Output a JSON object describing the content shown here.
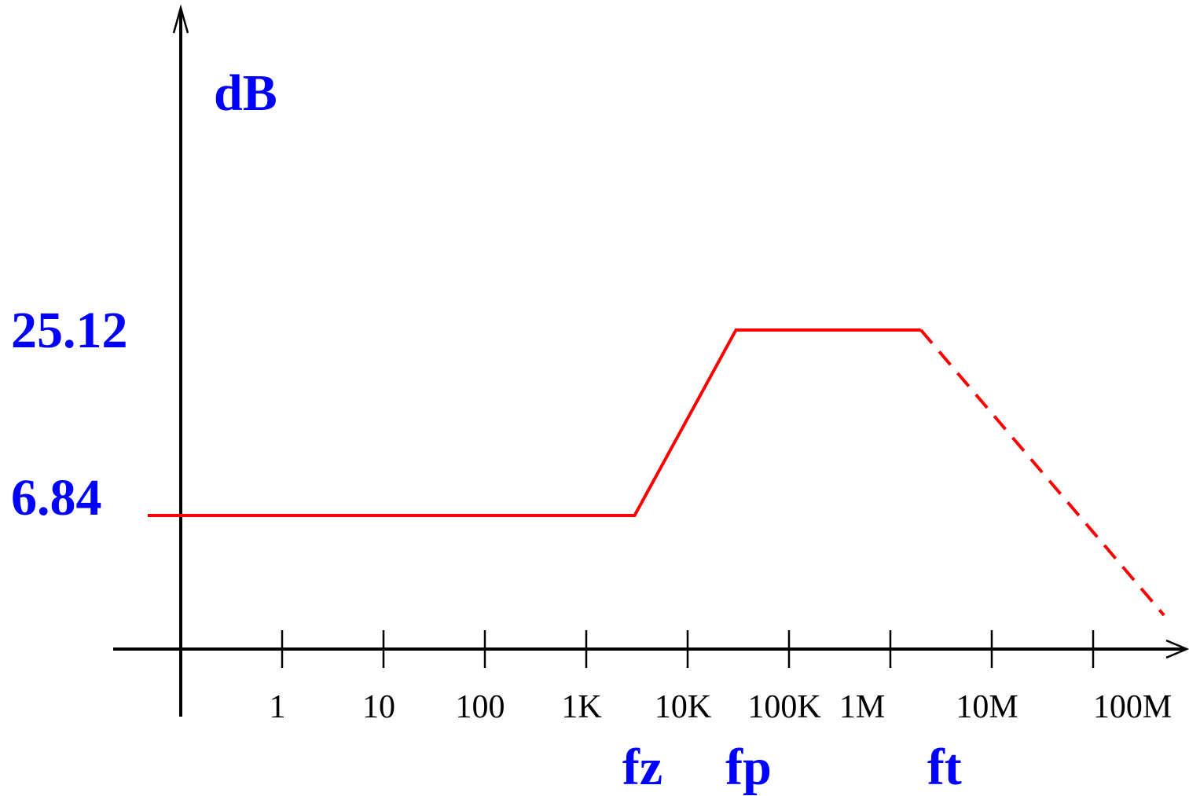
{
  "colors": {
    "axis": "#000000",
    "labels": "#0000ff",
    "response": "#ff0000"
  },
  "chart_data": {
    "type": "line",
    "title": "",
    "xscale": "log",
    "ylabel": "dB",
    "x_ticks": [
      "1",
      "10",
      "100",
      "1K",
      "10K",
      "100K",
      "1M",
      "10M",
      "100M"
    ],
    "y_annotations": [
      "25.12",
      "6.84"
    ],
    "y_annotation_values": [
      25.12,
      6.84
    ],
    "freq_markers": [
      {
        "label": "fz",
        "x": 3000
      },
      {
        "label": "fp",
        "x": 30000
      },
      {
        "label": "ft",
        "x": 2000000
      }
    ],
    "series": [
      {
        "style": "solid",
        "points": [
          [
            0.5,
            6.84
          ],
          [
            3000,
            6.84
          ],
          [
            30000,
            25.12
          ],
          [
            2000000,
            25.12
          ]
        ]
      },
      {
        "style": "dashed",
        "points": [
          [
            2000000,
            25.12
          ],
          [
            500000000,
            -3
          ]
        ]
      }
    ]
  }
}
